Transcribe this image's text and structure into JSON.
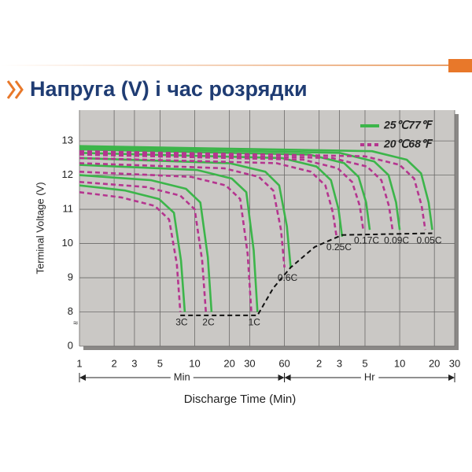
{
  "chart_data": {
    "type": "line",
    "title": "Напруга (V) і час розрядки",
    "x_label": "Discharge Time (Min)",
    "y_label": "Terminal Voltage (V)",
    "x_log": true,
    "xlim": [
      1,
      1800
    ],
    "ylim": [
      0,
      13.9
    ],
    "y_break": [
      0,
      7
    ],
    "grid": true,
    "legend": "top-right",
    "xticks": [
      1,
      2,
      3,
      5,
      10,
      20,
      30,
      60,
      {
        "value": 120,
        "label": "2"
      },
      {
        "value": 180,
        "label": "3"
      },
      {
        "value": 300,
        "label": "5"
      },
      {
        "value": 600,
        "label": "10"
      },
      {
        "value": 1200,
        "label": "20"
      },
      {
        "value": 1800,
        "label": "30"
      }
    ],
    "yticks": [
      0,
      8,
      9,
      10,
      11,
      12,
      13
    ],
    "x_units": [
      {
        "label": "Min",
        "from": 1,
        "to": 60
      },
      {
        "label": "Hr",
        "from": 60,
        "to": 1800
      }
    ],
    "rates": [
      "3C",
      "2C",
      "1C",
      "0.6C",
      "0.25C",
      "0.17C",
      "0.09C",
      "0.05C"
    ],
    "series": [
      {
        "name": "25℃77℉",
        "color": "#3cb54a",
        "dashed": false,
        "curves": [
          {
            "x": [
              1,
              2.5,
              4.9,
              6.6,
              7.6,
              8.2
            ],
            "values": [
              11.7,
              11.55,
              11.3,
              10.9,
              9.5,
              8.0
            ]
          },
          {
            "x": [
              1,
              4.2,
              8.4,
              11.2,
              13,
              14
            ],
            "values": [
              12.0,
              11.85,
              11.6,
              11.2,
              9.6,
              8.0
            ]
          },
          {
            "x": [
              1,
              10.5,
              21,
              28,
              32.5,
              35
            ],
            "values": [
              12.3,
              12.15,
              11.9,
              11.5,
              9.8,
              8.0
            ]
          },
          {
            "x": [
              1,
              20,
              41,
              54,
              63,
              68
            ],
            "values": [
              12.5,
              12.35,
              12.1,
              11.7,
              10.5,
              9.3
            ]
          },
          {
            "x": [
              1,
              57,
              114,
              152,
              177,
              190
            ],
            "values": [
              12.65,
              12.5,
              12.25,
              11.85,
              11.0,
              10.2
            ]
          },
          {
            "x": [
              1,
              99,
              198,
              264,
              307,
              330
            ],
            "values": [
              12.75,
              12.6,
              12.35,
              11.95,
              11.2,
              10.4
            ]
          },
          {
            "x": [
              1,
              180,
              360,
              480,
              558,
              600
            ],
            "values": [
              12.8,
              12.65,
              12.4,
              12.0,
              11.2,
              10.4
            ]
          },
          {
            "x": [
              1,
              345,
              690,
              920,
              1070,
              1150
            ],
            "values": [
              12.85,
              12.7,
              12.45,
              12.05,
              11.2,
              10.4
            ]
          }
        ]
      },
      {
        "name": "20℃68℉",
        "color": "#b5358f",
        "dashed": true,
        "curves": [
          {
            "x": [
              1,
              2.3,
              4.5,
              6,
              7,
              7.5
            ],
            "values": [
              11.5,
              11.35,
              11.1,
              10.7,
              9.4,
              8.0
            ]
          },
          {
            "x": [
              1,
              3.8,
              7.5,
              10,
              11.6,
              12.5
            ],
            "values": [
              11.8,
              11.65,
              11.4,
              11.0,
              9.5,
              8.0
            ]
          },
          {
            "x": [
              1,
              9.3,
              18.6,
              24.8,
              28.8,
              31
            ],
            "values": [
              12.1,
              11.95,
              11.7,
              11.3,
              9.7,
              8.0
            ]
          },
          {
            "x": [
              1,
              18,
              36,
              48,
              56,
              60
            ],
            "values": [
              12.35,
              12.2,
              11.95,
              11.55,
              10.4,
              9.3
            ]
          },
          {
            "x": [
              1,
              51,
              102,
              136,
              158,
              170
            ],
            "values": [
              12.5,
              12.35,
              12.1,
              11.7,
              10.9,
              10.2
            ]
          },
          {
            "x": [
              1,
              87,
              174,
              232,
              270,
              290
            ],
            "values": [
              12.6,
              12.45,
              12.2,
              11.8,
              11.1,
              10.4
            ]
          },
          {
            "x": [
              1,
              156,
              312,
              416,
              484,
              520
            ],
            "values": [
              12.65,
              12.5,
              12.25,
              11.85,
              11.1,
              10.4
            ]
          },
          {
            "x": [
              1,
              300,
              600,
              800,
              930,
              1000
            ],
            "values": [
              12.7,
              12.55,
              12.3,
              11.9,
              11.1,
              10.4
            ]
          }
        ]
      }
    ],
    "cutoff": {
      "x": [
        7.5,
        35,
        48,
        68,
        110,
        190,
        1150
      ],
      "values": [
        7.9,
        7.9,
        8.7,
        9.3,
        9.9,
        10.25,
        10.3
      ]
    }
  }
}
